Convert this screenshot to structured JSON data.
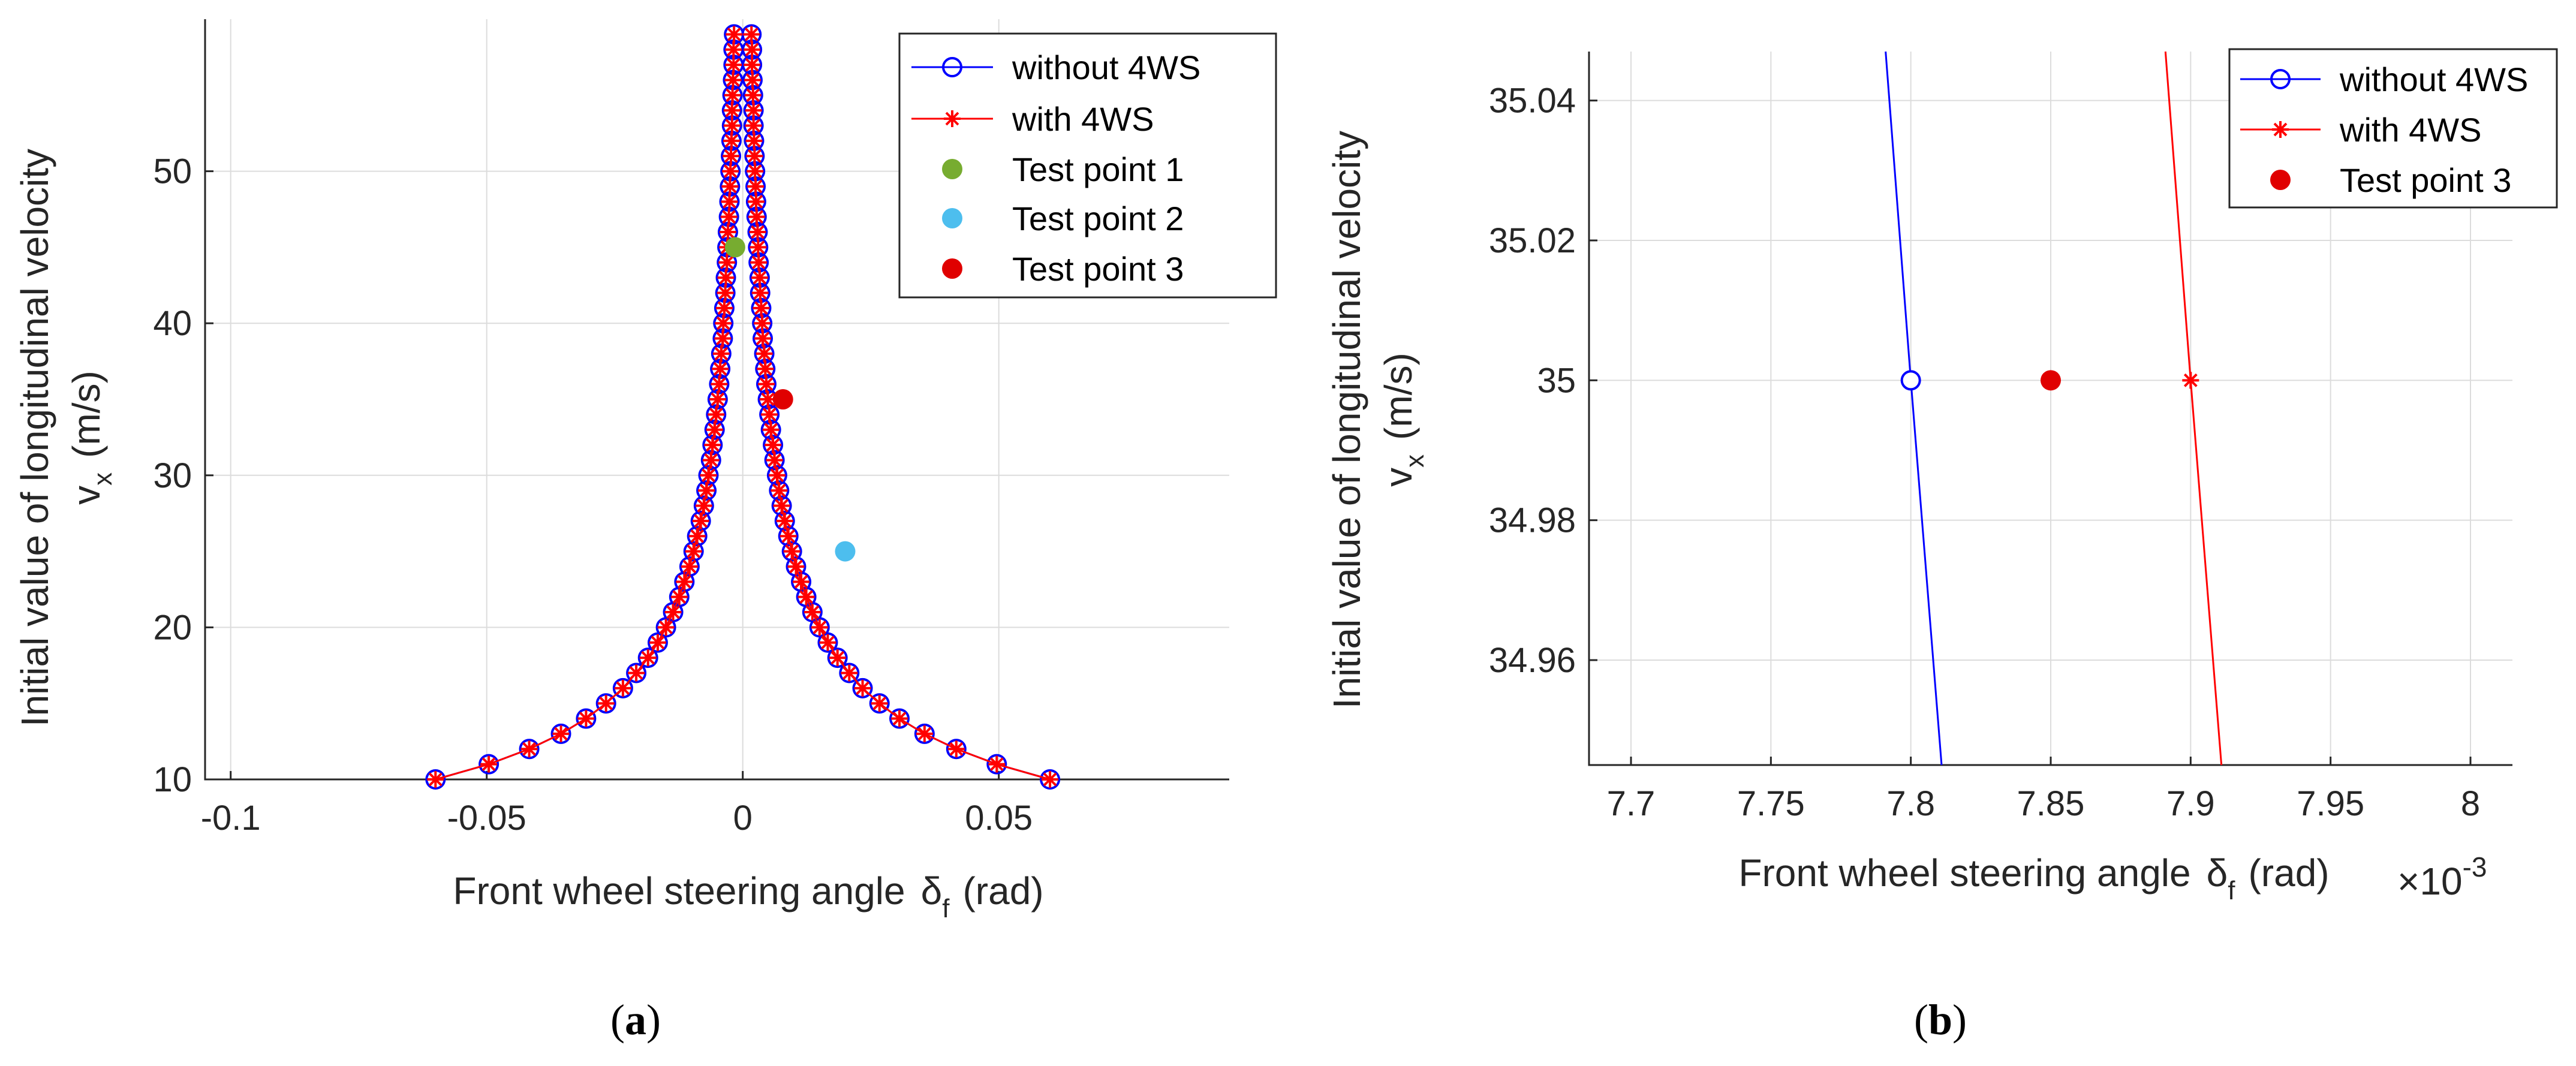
{
  "chart_data": [
    {
      "panel": "a",
      "panel_label": "a",
      "type": "line",
      "xlabel": "Front wheel steering angle",
      "xlabel_symbol": "δ",
      "xlabel_subscript": "f",
      "xlabel_unit": "(rad)",
      "ylabel_line1": "Initial value of longitudinal velocity",
      "ylabel_line2_symbol": "v",
      "ylabel_line2_subscript": "x",
      "ylabel_line2_unit": "(m/s)",
      "xlim": [
        -0.105,
        0.095
      ],
      "ylim": [
        10,
        60
      ],
      "xticks": [
        -0.1,
        -0.05,
        0,
        0.05
      ],
      "xtick_labels": [
        "-0.1",
        "-0.05",
        "0",
        "0.05"
      ],
      "yticks": [
        10,
        20,
        30,
        40,
        50
      ],
      "ytick_labels": [
        "10",
        "20",
        "30",
        "40",
        "50"
      ],
      "grid": true,
      "legend_location": "top-right",
      "legend_entries": [
        "without 4WS",
        "with 4WS",
        "Test point 1",
        "Test point 2",
        "Test point 3"
      ],
      "y": [
        10,
        11,
        12,
        13,
        14,
        15,
        16,
        17,
        18,
        19,
        20,
        21,
        22,
        23,
        24,
        25,
        26,
        27,
        28,
        29,
        30,
        31,
        32,
        33,
        34,
        35,
        36,
        37,
        38,
        39,
        40,
        41,
        42,
        43,
        44,
        45,
        46,
        47,
        48,
        49,
        50,
        51,
        52,
        53,
        54,
        55,
        56,
        57,
        58,
        59
      ],
      "series": [
        {
          "name": "without 4WS",
          "color": "#0000ff",
          "marker": "circle",
          "x_right": [
            0.06,
            0.0496,
            0.0417,
            0.0355,
            0.0306,
            0.0267,
            0.0234,
            0.0208,
            0.0185,
            0.0166,
            0.015,
            0.0136,
            0.0124,
            0.0114,
            0.0104,
            0.0096,
            0.0089,
            0.0082,
            0.0076,
            0.0071,
            0.0067,
            0.0062,
            0.0059,
            0.0055,
            0.0052,
            0.0049,
            0.0046,
            0.0044,
            0.0042,
            0.0039,
            0.0038,
            0.0036,
            0.0034,
            0.0033,
            0.0031,
            0.003,
            0.0029,
            0.0027,
            0.0026,
            0.0025,
            0.0024,
            0.0023,
            0.0022,
            0.0021,
            0.0021,
            0.002,
            0.0019,
            0.0018,
            0.0018,
            0.0017
          ]
        },
        {
          "name": "with 4WS",
          "color": "#ff0000",
          "marker": "asterisk",
          "x_right": [
            0.06,
            0.0496,
            0.0417,
            0.0355,
            0.0306,
            0.0267,
            0.0234,
            0.0208,
            0.0185,
            0.0166,
            0.015,
            0.0136,
            0.0124,
            0.0114,
            0.0104,
            0.0096,
            0.0089,
            0.0082,
            0.0076,
            0.0071,
            0.0067,
            0.0062,
            0.0059,
            0.0055,
            0.0052,
            0.0049,
            0.0046,
            0.0044,
            0.0042,
            0.0039,
            0.0038,
            0.0036,
            0.0034,
            0.0033,
            0.0031,
            0.003,
            0.0029,
            0.0027,
            0.0026,
            0.0025,
            0.0024,
            0.0023,
            0.0022,
            0.0021,
            0.0021,
            0.002,
            0.0019,
            0.0018,
            0.0018,
            0.0017
          ]
        }
      ],
      "points": [
        {
          "name": "Test point 1",
          "x": -0.0015,
          "y": 45,
          "color": "#77ac30"
        },
        {
          "name": "Test point 2",
          "x": 0.02,
          "y": 25,
          "color": "#4dbeee"
        },
        {
          "name": "Test point 3",
          "x": 0.00785,
          "y": 35,
          "color": "#e00000"
        }
      ]
    },
    {
      "panel": "b",
      "panel_label": "b",
      "type": "line",
      "xlabel": "Front wheel steering angle",
      "xlabel_symbol": "δ",
      "xlabel_subscript": "f",
      "xlabel_unit": "(rad)",
      "x_exponent_base": "×10",
      "x_exponent": "-3",
      "ylabel_line1": "Initial value of longitudinal velocity",
      "ylabel_line2_symbol": "v",
      "ylabel_line2_subscript": "x",
      "ylabel_line2_unit": "(m/s)",
      "xlim": [
        7.685,
        8.015
      ],
      "ylim": [
        34.945,
        35.047
      ],
      "xticks": [
        7.7,
        7.75,
        7.8,
        7.85,
        7.9,
        7.95,
        8.0
      ],
      "xtick_labels": [
        "7.7",
        "7.75",
        "7.8",
        "7.85",
        "7.9",
        "7.95",
        "8"
      ],
      "yticks": [
        34.96,
        34.98,
        35.0,
        35.02,
        35.04
      ],
      "ytick_labels": [
        "34.96",
        "34.98",
        "35",
        "35.02",
        "35.04"
      ],
      "grid": true,
      "legend_location": "top-right",
      "legend_entries": [
        "without 4WS",
        "with 4WS",
        "Test point 3"
      ],
      "series": [
        {
          "name": "without 4WS",
          "color": "#0000ff",
          "marker": "circle",
          "x": [
            7.791,
            7.8,
            7.811
          ],
          "y": [
            35.047,
            35.0,
            34.945
          ],
          "marker_index": 1
        },
        {
          "name": "with 4WS",
          "color": "#ff0000",
          "marker": "asterisk",
          "x": [
            7.891,
            7.9,
            7.911
          ],
          "y": [
            35.047,
            35.0,
            34.945
          ],
          "marker_index": 1
        }
      ],
      "points": [
        {
          "name": "Test point 3",
          "x": 7.85,
          "y": 35.0,
          "color": "#e00000"
        }
      ]
    }
  ]
}
